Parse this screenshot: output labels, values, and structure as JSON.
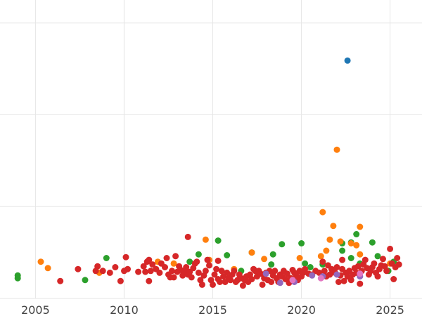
{
  "chart_data": {
    "type": "scatter",
    "title": "",
    "xlabel": "",
    "ylabel": "",
    "xlim": [
      2003.0,
      2026.8
    ],
    "ylim": [
      0,
      3.25
    ],
    "grid": true,
    "x_ticks": [
      2005,
      2010,
      2015,
      2020,
      2025
    ],
    "x_tick_labels": [
      "2005",
      "2010",
      "2015",
      "2020",
      "2025"
    ],
    "y_ticks": [
      0,
      1,
      2,
      3
    ],
    "y_tick_labels": [
      "",
      "",
      "",
      ""
    ],
    "colors": {
      "blue": "#1f77b4",
      "orange": "#ff7f0e",
      "green": "#2ca02c",
      "red": "#d62728",
      "purple": "#9467bd",
      "pink": "#e377c2"
    },
    "series": [
      {
        "color": "blue",
        "points": [
          [
            2022.6,
            2.59
          ]
        ]
      },
      {
        "color": "orange",
        "points": [
          [
            2005.3,
            0.4
          ],
          [
            2005.7,
            0.33
          ],
          [
            2008.6,
            0.28
          ],
          [
            2011.9,
            0.4
          ],
          [
            2012.8,
            0.38
          ],
          [
            2014.6,
            0.64
          ],
          [
            2014.8,
            0.42
          ],
          [
            2016.2,
            0.32
          ],
          [
            2017.2,
            0.5
          ],
          [
            2017.9,
            0.43
          ],
          [
            2019.9,
            0.44
          ],
          [
            2021.1,
            0.46
          ],
          [
            2021.4,
            0.52
          ],
          [
            2021.6,
            0.64
          ],
          [
            2021.8,
            0.79
          ],
          [
            2022.0,
            1.62
          ],
          [
            2021.2,
            0.94
          ],
          [
            2022.2,
            0.62
          ],
          [
            2022.8,
            0.6
          ],
          [
            2023.1,
            0.58
          ],
          [
            2023.3,
            0.48
          ],
          [
            2023.3,
            0.78
          ],
          [
            2025.0,
            0.38
          ]
        ]
      },
      {
        "color": "green",
        "points": [
          [
            2004.0,
            0.25
          ],
          [
            2004.0,
            0.22
          ],
          [
            2007.8,
            0.2
          ],
          [
            2009.0,
            0.44
          ],
          [
            2013.7,
            0.4
          ],
          [
            2014.2,
            0.48
          ],
          [
            2015.3,
            0.63
          ],
          [
            2015.8,
            0.47
          ],
          [
            2016.6,
            0.3
          ],
          [
            2017.2,
            0.5
          ],
          [
            2018.3,
            0.37
          ],
          [
            2018.4,
            0.48
          ],
          [
            2018.9,
            0.59
          ],
          [
            2019.4,
            0.22
          ],
          [
            2020.0,
            0.6
          ],
          [
            2020.2,
            0.38
          ],
          [
            2020.5,
            0.34
          ],
          [
            2021.2,
            0.37
          ],
          [
            2022.3,
            0.52
          ],
          [
            2022.3,
            0.6
          ],
          [
            2022.8,
            0.44
          ],
          [
            2022.8,
            0.61
          ],
          [
            2023.1,
            0.7
          ],
          [
            2023.3,
            0.38
          ],
          [
            2024.0,
            0.61
          ],
          [
            2024.3,
            0.46
          ],
          [
            2024.9,
            0.3
          ],
          [
            2025.2,
            0.4
          ]
        ]
      },
      {
        "color": "purple",
        "points": [
          [
            2018.0,
            0.27
          ],
          [
            2018.8,
            0.17
          ],
          [
            2019.6,
            0.18
          ],
          [
            2020.6,
            0.25
          ],
          [
            2021.2,
            0.24
          ],
          [
            2022.0,
            0.26
          ],
          [
            2023.3,
            0.24
          ]
        ]
      },
      {
        "color": "pink",
        "points": [
          [
            2019.5,
            0.2
          ],
          [
            2021.1,
            0.22
          ],
          [
            2023.3,
            0.27
          ]
        ]
      },
      {
        "color": "red",
        "points": [
          [
            2006.4,
            0.19
          ],
          [
            2007.4,
            0.32
          ],
          [
            2008.4,
            0.3
          ],
          [
            2008.5,
            0.35
          ],
          [
            2008.8,
            0.3
          ],
          [
            2009.2,
            0.28
          ],
          [
            2009.5,
            0.34
          ],
          [
            2009.8,
            0.19
          ],
          [
            2010.0,
            0.3
          ],
          [
            2010.1,
            0.45
          ],
          [
            2010.2,
            0.32
          ],
          [
            2010.8,
            0.29
          ],
          [
            2011.1,
            0.35
          ],
          [
            2011.2,
            0.29
          ],
          [
            2011.3,
            0.4
          ],
          [
            2011.4,
            0.42
          ],
          [
            2011.4,
            0.19
          ],
          [
            2011.5,
            0.3
          ],
          [
            2011.6,
            0.37
          ],
          [
            2011.8,
            0.32
          ],
          [
            2012.0,
            0.28
          ],
          [
            2012.1,
            0.38
          ],
          [
            2012.3,
            0.34
          ],
          [
            2012.4,
            0.44
          ],
          [
            2012.5,
            0.26
          ],
          [
            2012.6,
            0.23
          ],
          [
            2012.7,
            0.3
          ],
          [
            2012.8,
            0.23
          ],
          [
            2012.9,
            0.46
          ],
          [
            2013.0,
            0.29
          ],
          [
            2013.1,
            0.35
          ],
          [
            2013.2,
            0.31
          ],
          [
            2013.3,
            0.25
          ],
          [
            2013.4,
            0.3
          ],
          [
            2013.5,
            0.34
          ],
          [
            2013.6,
            0.26
          ],
          [
            2013.6,
            0.67
          ],
          [
            2013.7,
            0.29
          ],
          [
            2013.8,
            0.23
          ],
          [
            2013.9,
            0.33
          ],
          [
            2014.0,
            0.38
          ],
          [
            2014.1,
            0.4
          ],
          [
            2014.2,
            0.28
          ],
          [
            2014.3,
            0.2
          ],
          [
            2014.4,
            0.15
          ],
          [
            2014.5,
            0.25
          ],
          [
            2014.6,
            0.3
          ],
          [
            2014.7,
            0.42
          ],
          [
            2014.8,
            0.36
          ],
          [
            2014.9,
            0.2
          ],
          [
            2015.0,
            0.15
          ],
          [
            2015.1,
            0.26
          ],
          [
            2015.2,
            0.32
          ],
          [
            2015.3,
            0.21
          ],
          [
            2015.3,
            0.41
          ],
          [
            2015.4,
            0.18
          ],
          [
            2015.5,
            0.3
          ],
          [
            2015.6,
            0.24
          ],
          [
            2015.7,
            0.18
          ],
          [
            2015.8,
            0.28
          ],
          [
            2015.9,
            0.22
          ],
          [
            2016.0,
            0.2
          ],
          [
            2016.1,
            0.26
          ],
          [
            2016.2,
            0.3
          ],
          [
            2016.3,
            0.18
          ],
          [
            2016.4,
            0.2
          ],
          [
            2016.5,
            0.26
          ],
          [
            2016.6,
            0.22
          ],
          [
            2016.7,
            0.14
          ],
          [
            2016.8,
            0.2
          ],
          [
            2016.9,
            0.24
          ],
          [
            2017.0,
            0.18
          ],
          [
            2017.1,
            0.26
          ],
          [
            2017.2,
            0.21
          ],
          [
            2017.3,
            0.32
          ],
          [
            2017.4,
            0.3
          ],
          [
            2017.5,
            0.24
          ],
          [
            2017.6,
            0.3
          ],
          [
            2017.7,
            0.27
          ],
          [
            2017.8,
            0.15
          ],
          [
            2017.9,
            0.22
          ],
          [
            2018.0,
            0.28
          ],
          [
            2018.1,
            0.2
          ],
          [
            2018.2,
            0.3
          ],
          [
            2018.3,
            0.18
          ],
          [
            2018.4,
            0.25
          ],
          [
            2018.5,
            0.3
          ],
          [
            2018.6,
            0.22
          ],
          [
            2018.7,
            0.18
          ],
          [
            2018.8,
            0.26
          ],
          [
            2018.9,
            0.24
          ],
          [
            2019.0,
            0.3
          ],
          [
            2019.1,
            0.21
          ],
          [
            2019.2,
            0.27
          ],
          [
            2019.3,
            0.17
          ],
          [
            2019.4,
            0.22
          ],
          [
            2019.5,
            0.31
          ],
          [
            2019.6,
            0.28
          ],
          [
            2019.7,
            0.25
          ],
          [
            2019.8,
            0.2
          ],
          [
            2019.9,
            0.3
          ],
          [
            2020.0,
            0.24
          ],
          [
            2020.1,
            0.28
          ],
          [
            2020.2,
            0.32
          ],
          [
            2020.4,
            0.27
          ],
          [
            2020.6,
            0.26
          ],
          [
            2020.8,
            0.3
          ],
          [
            2021.0,
            0.28
          ],
          [
            2021.2,
            0.4
          ],
          [
            2021.3,
            0.3
          ],
          [
            2021.4,
            0.24
          ],
          [
            2021.5,
            0.36
          ],
          [
            2021.6,
            0.26
          ],
          [
            2021.7,
            0.32
          ],
          [
            2021.8,
            0.3
          ],
          [
            2021.9,
            0.28
          ],
          [
            2022.0,
            0.34
          ],
          [
            2022.1,
            0.18
          ],
          [
            2022.2,
            0.25
          ],
          [
            2022.3,
            0.32
          ],
          [
            2022.3,
            0.42
          ],
          [
            2022.4,
            0.19
          ],
          [
            2022.5,
            0.28
          ],
          [
            2022.6,
            0.24
          ],
          [
            2022.7,
            0.3
          ],
          [
            2022.8,
            0.2
          ],
          [
            2022.9,
            0.26
          ],
          [
            2023.0,
            0.33
          ],
          [
            2023.1,
            0.28
          ],
          [
            2023.2,
            0.35
          ],
          [
            2023.3,
            0.16
          ],
          [
            2023.4,
            0.3
          ],
          [
            2023.5,
            0.37
          ],
          [
            2023.6,
            0.42
          ],
          [
            2023.7,
            0.33
          ],
          [
            2023.8,
            0.26
          ],
          [
            2023.9,
            0.3
          ],
          [
            2024.0,
            0.34
          ],
          [
            2024.1,
            0.38
          ],
          [
            2024.2,
            0.28
          ],
          [
            2024.3,
            0.24
          ],
          [
            2024.4,
            0.32
          ],
          [
            2024.5,
            0.36
          ],
          [
            2024.6,
            0.43
          ],
          [
            2024.7,
            0.35
          ],
          [
            2024.8,
            0.3
          ],
          [
            2025.0,
            0.54
          ],
          [
            2025.1,
            0.38
          ],
          [
            2025.2,
            0.21
          ],
          [
            2025.3,
            0.34
          ],
          [
            2025.4,
            0.44
          ],
          [
            2025.5,
            0.37
          ]
        ]
      }
    ]
  }
}
